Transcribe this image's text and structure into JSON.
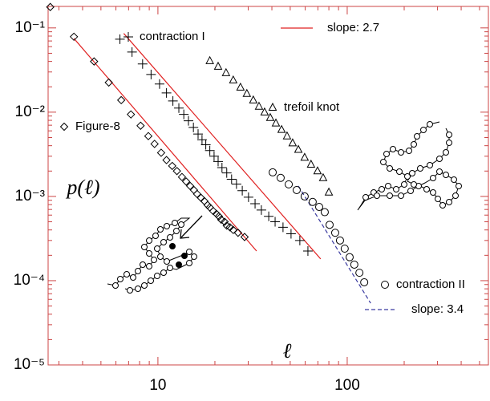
{
  "chart_data": {
    "type": "scatter",
    "log_x": true,
    "log_y": true,
    "xlim": [
      2.63,
      557
    ],
    "ylim": [
      1e-05,
      0.18
    ],
    "xticks": [
      10,
      100
    ],
    "yticks": [
      {
        "value": 1e-05,
        "label": "10⁻⁵"
      },
      {
        "value": 0.0001,
        "label": "10⁻⁴"
      },
      {
        "value": 0.001,
        "label": "10⁻³"
      },
      {
        "value": 0.01,
        "label": "10⁻²"
      },
      {
        "value": 0.1,
        "label": "10⁻¹"
      }
    ],
    "xlabel": "ℓ",
    "ylabel": "p(ℓ)",
    "frame_color": "#cc4444",
    "series": [
      {
        "name": "Figure-8",
        "marker": "diamond",
        "color": "#000000",
        "x": [
          2.7,
          3.6,
          4.6,
          5.5,
          6.4,
          7.2,
          8.1,
          8.9,
          9.6,
          10.4,
          11.1,
          11.9,
          12.6,
          13.4,
          14.1,
          14.8,
          15.5,
          16.1,
          16.9,
          17.6,
          18.3,
          18.8,
          19.6,
          20.4,
          21,
          21.6,
          22.5,
          23.1,
          24,
          25,
          26.5,
          28.7
        ],
        "values": [
          0.177,
          0.0786,
          0.04,
          0.0225,
          0.0139,
          0.0094,
          0.0069,
          0.0052,
          0.0042,
          0.0033,
          0.0027,
          0.0023,
          0.002,
          0.0017,
          0.0015,
          0.00133,
          0.00119,
          0.00107,
          0.00096,
          0.00088,
          0.00079,
          0.00074,
          0.00067,
          0.00062,
          0.00058,
          0.00053,
          0.0005,
          0.00045,
          0.00043,
          0.0004,
          0.00037,
          0.00033
        ]
      },
      {
        "name": "contraction I",
        "marker": "plus",
        "color": "#000000",
        "x": [
          6.3,
          7.3,
          8.3,
          9.2,
          10.2,
          11.1,
          12,
          12.9,
          13.7,
          14.5,
          15.4,
          16.3,
          17.1,
          17.9,
          18.8,
          19.8,
          20.8,
          21.8,
          23.1,
          24.5,
          26,
          27.9,
          30.1,
          32.6,
          35.2,
          38.5,
          41.6,
          45.8,
          50.5,
          56.2,
          62
        ],
        "values": [
          0.0735,
          0.0518,
          0.0373,
          0.028,
          0.0216,
          0.0169,
          0.0136,
          0.0112,
          0.0094,
          0.0079,
          0.0066,
          0.0055,
          0.0047,
          0.0041,
          0.0035,
          0.003,
          0.0026,
          0.0022,
          0.0019,
          0.0016,
          0.0014,
          0.00117,
          0.00098,
          0.00082,
          0.00069,
          0.00058,
          0.0005,
          0.00043,
          0.00036,
          0.0003,
          0.000225
        ]
      },
      {
        "name": "trefoil knot",
        "marker": "triangle",
        "color": "#000000",
        "x": [
          18.8,
          20.8,
          22.9,
          25,
          27.3,
          29.5,
          31.9,
          34.2,
          36.6,
          39.2,
          42,
          45,
          48.1,
          51.5,
          55.2,
          59.6,
          64.4,
          69.7,
          74.6,
          80
        ],
        "values": [
          0.0407,
          0.0349,
          0.0293,
          0.024,
          0.0197,
          0.0166,
          0.0139,
          0.0117,
          0.01,
          0.0086,
          0.0074,
          0.0062,
          0.0052,
          0.0043,
          0.0036,
          0.0029,
          0.0024,
          0.002,
          0.00166,
          0.00112
        ]
      },
      {
        "name": "contraction II",
        "marker": "circle",
        "color": "#000000",
        "x": [
          40.4,
          44.5,
          49.1,
          54.1,
          59.6,
          65.7,
          71.1,
          76.1,
          80.7,
          86.4,
          91.6,
          97,
          103,
          109,
          116,
          123
        ],
        "values": [
          0.00193,
          0.00166,
          0.00139,
          0.00119,
          0.001,
          0.00086,
          0.00075,
          0.00065,
          0.00046,
          0.00037,
          0.0003,
          0.00024,
          0.00019,
          0.000155,
          0.000124,
          9.57e-05
        ]
      }
    ],
    "fit_lines": [
      {
        "name": "slope: 2.7",
        "color": "#e02020",
        "dash": false,
        "segments": [
          {
            "x": [
              3.6,
              33.2
            ],
            "y": [
              0.075,
              0.000225
            ]
          },
          {
            "x": [
              6.6,
              72.4
            ],
            "y": [
              0.086,
              0.000181
            ]
          }
        ]
      },
      {
        "name": "slope: 3.4",
        "color": "#3a3aa0",
        "dash": true,
        "segments": [
          {
            "x": [
              55.2,
              133
            ],
            "y": [
              0.00133,
              5.4e-05
            ]
          }
        ]
      }
    ]
  }
}
